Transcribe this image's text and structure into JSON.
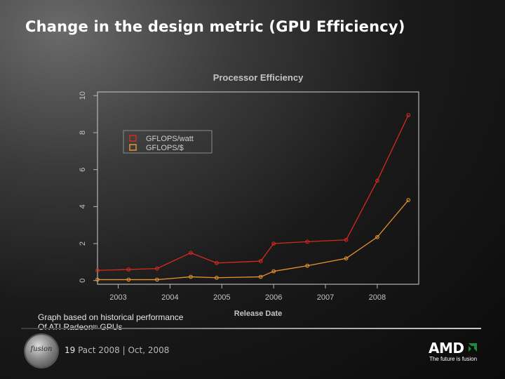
{
  "slide": {
    "title": "Change in the design metric (GPU Efficiency)",
    "caption_line1": "Graph based on historical performance",
    "caption_line2_prefix": "Of ATI Radeon",
    "caption_line2_tm": "tm",
    "caption_line2_suffix": " GPUs",
    "page_number": "19",
    "footer": "Pact 2008 | Oct, 2008",
    "logo_text": "fusion",
    "brand": "AMD",
    "tagline": "The future is fusion"
  },
  "colors": {
    "series1": "#d42a1e",
    "series2": "#e8922e",
    "brand_arrow": "#1f8a3c"
  },
  "chart_data": {
    "type": "line",
    "title": "Processor Efficiency",
    "xlabel": "Release Date",
    "ylabel": "",
    "xlim": [
      2002.6,
      2008.8
    ],
    "ylim": [
      -0.2,
      10.2
    ],
    "xticks": [
      2003,
      2004,
      2005,
      2006,
      2007,
      2008
    ],
    "yticks": [
      0,
      2,
      4,
      6,
      8,
      10
    ],
    "legend_position": "upper-left",
    "series": [
      {
        "name": "GFLOPS/watt",
        "x": [
          2002.6,
          2003.2,
          2003.75,
          2004.4,
          2004.9,
          2005.75,
          2006.0,
          2006.65,
          2007.4,
          2008.0,
          2008.6
        ],
        "values": [
          0.55,
          0.6,
          0.65,
          1.5,
          0.95,
          1.05,
          2.0,
          2.1,
          2.2,
          5.4,
          8.95
        ]
      },
      {
        "name": "GFLOPS/$",
        "x": [
          2002.6,
          2003.2,
          2003.75,
          2004.4,
          2004.9,
          2005.75,
          2006.0,
          2006.65,
          2007.4,
          2008.0,
          2008.6
        ],
        "values": [
          0.05,
          0.05,
          0.05,
          0.2,
          0.15,
          0.2,
          0.5,
          0.8,
          1.2,
          2.35,
          4.35
        ]
      }
    ]
  }
}
